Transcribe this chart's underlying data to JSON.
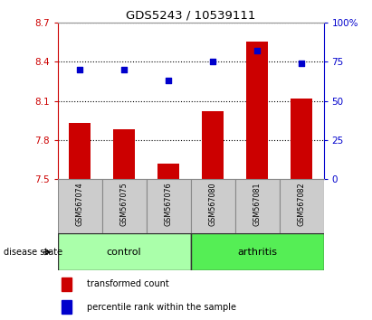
{
  "title": "GDS5243 / 10539111",
  "samples": [
    "GSM567074",
    "GSM567075",
    "GSM567076",
    "GSM567080",
    "GSM567081",
    "GSM567082"
  ],
  "transformed_count": [
    7.93,
    7.88,
    7.62,
    8.02,
    8.55,
    8.12
  ],
  "percentile_rank": [
    70,
    70,
    63,
    75,
    82,
    74
  ],
  "ylim_left": [
    7.5,
    8.7
  ],
  "ylim_right": [
    0,
    100
  ],
  "yticks_left": [
    7.5,
    7.8,
    8.1,
    8.4,
    8.7
  ],
  "yticks_right": [
    0,
    25,
    50,
    75,
    100
  ],
  "ytick_labels_right": [
    "0",
    "25",
    "50",
    "75",
    "100%"
  ],
  "bar_color": "#cc0000",
  "dot_color": "#0000cc",
  "groups": [
    {
      "label": "control",
      "indices": [
        0,
        1,
        2
      ],
      "color": "#aaffaa"
    },
    {
      "label": "arthritis",
      "indices": [
        3,
        4,
        5
      ],
      "color": "#55ee55"
    }
  ],
  "disease_state_label": "disease state",
  "legend_bar_label": "transformed count",
  "legend_dot_label": "percentile rank within the sample",
  "axis_left_color": "#cc0000",
  "axis_right_color": "#0000cc",
  "label_box_color": "#cccccc",
  "label_box_edge": "#888888"
}
